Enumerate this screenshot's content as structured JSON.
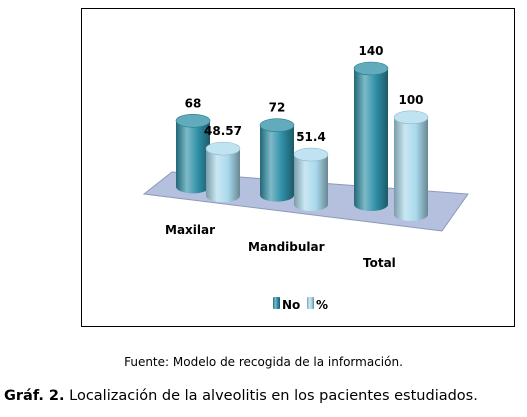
{
  "chart_data": {
    "type": "bar",
    "categories": [
      "Maxilar",
      "Mandibular",
      "Total"
    ],
    "series": [
      {
        "name": "No",
        "values": [
          68,
          72,
          140
        ],
        "labels": [
          "68",
          "72",
          "140"
        ]
      },
      {
        "name": "%",
        "values": [
          48.57,
          51.4,
          100
        ],
        "labels": [
          "48.57",
          "51.4",
          "100"
        ]
      }
    ],
    "ylim": [
      0,
      140
    ],
    "legend_position": "bottom",
    "grid": false,
    "style": "3d-cylinder",
    "colors": {
      "No": "#2e8fa6",
      "%": "#a9d9ec",
      "floor": "#b4c0dd"
    }
  },
  "source_note": "Fuente: Modelo de recogida de la información.",
  "caption": {
    "label": "Gráf. 2.",
    "text": " Localización de la alveolitis en los pacientes estudiados."
  }
}
